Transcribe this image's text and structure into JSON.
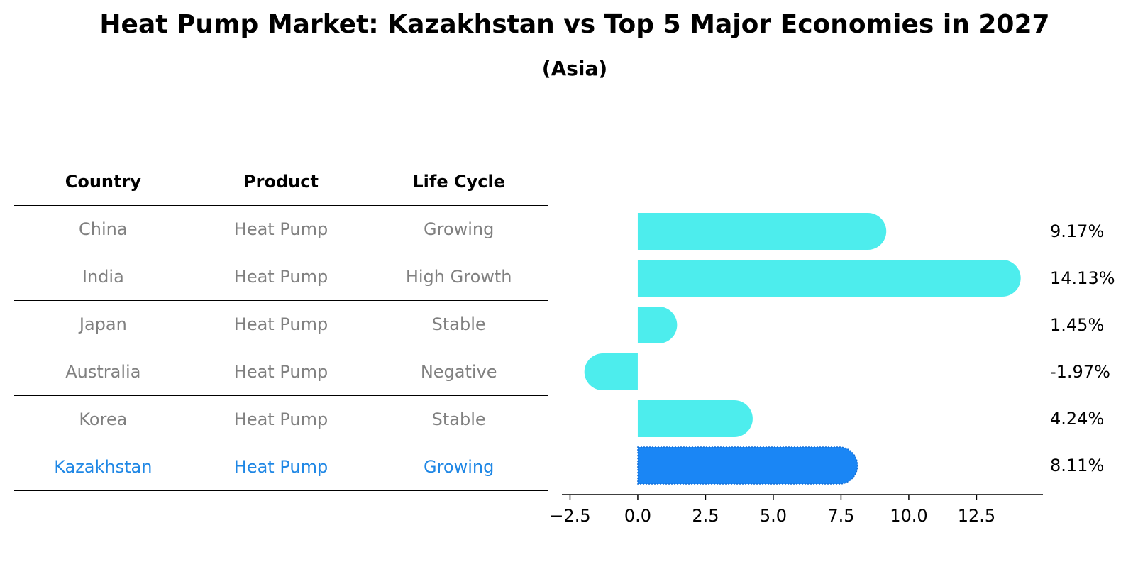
{
  "title": "Heat Pump Market: Kazakhstan vs Top 5 Major Economies in 2027",
  "subtitle": "(Asia)",
  "table": {
    "headers": [
      "Country",
      "Product",
      "Life Cycle"
    ],
    "rows": [
      [
        "China",
        "Heat Pump",
        "Growing"
      ],
      [
        "India",
        "Heat Pump",
        "High Growth"
      ],
      [
        "Japan",
        "Heat Pump",
        "Stable"
      ],
      [
        "Australia",
        "Heat Pump",
        "Negative"
      ],
      [
        "Korea",
        "Heat Pump",
        "Stable"
      ],
      [
        "Kazakhstan",
        "Heat Pump",
        "Growing"
      ]
    ],
    "highlight_color": "#1f87e5",
    "text_color": "#808080"
  },
  "chart_data": {
    "type": "bar",
    "orientation": "horizontal",
    "categories": [
      "China",
      "India",
      "Japan",
      "Australia",
      "Korea",
      "Kazakhstan"
    ],
    "values": [
      9.17,
      14.13,
      1.45,
      -1.97,
      4.24,
      8.11
    ],
    "value_labels": [
      "9.17%",
      "14.13%",
      "1.45%",
      "-1.97%",
      "4.24%",
      "8.11%"
    ],
    "xlim": [
      -2.8,
      14.95
    ],
    "xticks": [
      -2.5,
      0.0,
      2.5,
      5.0,
      7.5,
      10.0,
      12.5
    ],
    "xtick_labels": [
      "−2.5",
      "0.0",
      "2.5",
      "5.0",
      "7.5",
      "10.0",
      "12.5"
    ],
    "bar_color": "#4deded",
    "highlight_color": "#1a86f5",
    "highlight_index": 5,
    "grid": false
  }
}
